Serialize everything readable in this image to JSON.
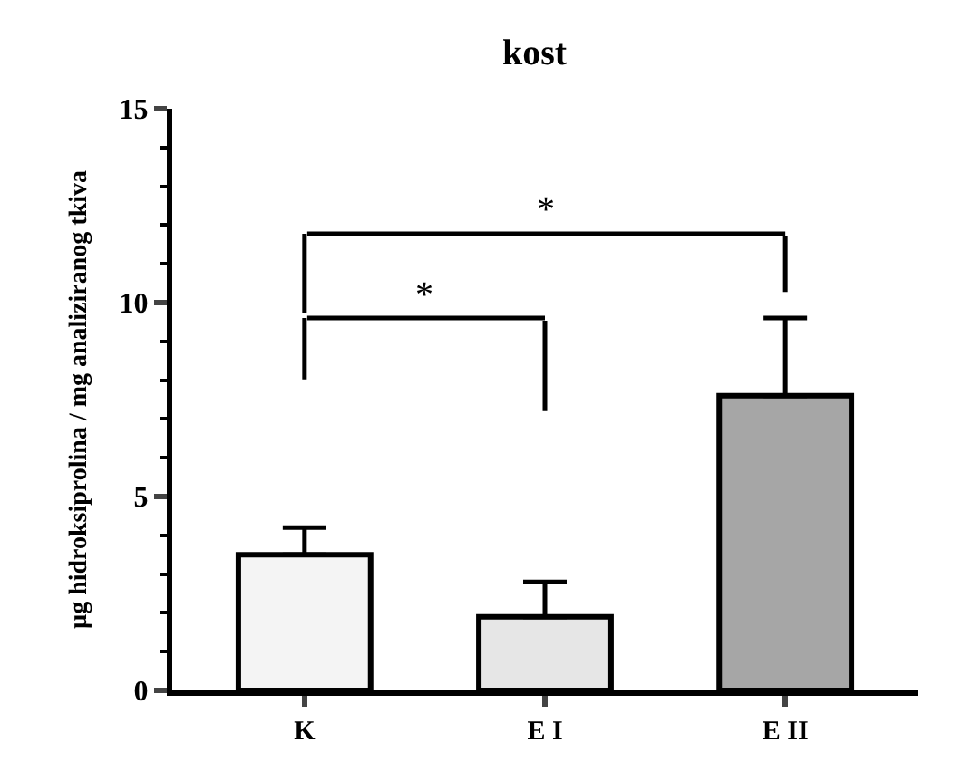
{
  "chart_data": {
    "type": "bar",
    "title": "kost",
    "ylabel": "µg hidroksiprolina / mg analiziranog tkiva",
    "categories": [
      "K",
      "E I",
      "E II"
    ],
    "values": [
      3.5,
      1.9,
      7.6
    ],
    "colors": [
      "#f4f4f4",
      "#e6e6e6",
      "#a6a6a6"
    ],
    "errors": [
      [
        3.5,
        4.2
      ],
      [
        1.9,
        2.8
      ],
      [
        7.6,
        9.6
      ]
    ],
    "ylim": [
      0,
      15
    ],
    "yticks": [
      0,
      5,
      10,
      15
    ],
    "annotations": [
      "*",
      "*"
    ]
  }
}
